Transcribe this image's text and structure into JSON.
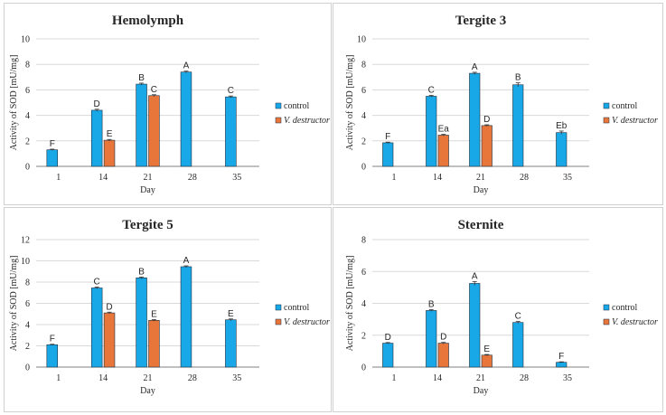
{
  "colors": {
    "control": "#18a8e8",
    "destructor": "#e8763a",
    "grid": "#d9d9d9",
    "axis": "#808080",
    "panel_border": "#d0d0d0",
    "text": "#262626",
    "bar_outline": "#1f2f3f"
  },
  "chart_data": [
    {
      "type": "bar",
      "title": "Hemolymph",
      "xlabel": "Day",
      "ylabel": "Activity of SOD [mU/mg]",
      "categories": [
        "1",
        "14",
        "21",
        "28",
        "35"
      ],
      "ylim": [
        0,
        10
      ],
      "yticks": [
        "0",
        "2",
        "4",
        "6",
        "8",
        "10"
      ],
      "grid": true,
      "legend_position": "right",
      "series": [
        {
          "name": "control",
          "values": [
            1.3,
            4.4,
            6.45,
            7.4,
            5.45
          ],
          "error": [
            0.05,
            0.08,
            0.08,
            0.07,
            0.07
          ],
          "labels": [
            "F",
            "D",
            "B",
            "A",
            "C"
          ]
        },
        {
          "name": "V. destructor",
          "values": [
            null,
            2.05,
            5.55,
            null,
            null
          ],
          "error": [
            null,
            0.06,
            0.07,
            null,
            null
          ],
          "labels": [
            "",
            "E",
            "C",
            "",
            ""
          ]
        }
      ]
    },
    {
      "type": "bar",
      "title": "Tergite 3",
      "xlabel": "Day",
      "ylabel": "Activity of SOD [mU/mg]",
      "categories": [
        "1",
        "14",
        "21",
        "28",
        "35"
      ],
      "ylim": [
        0,
        10
      ],
      "yticks": [
        "0",
        "2",
        "4",
        "6",
        "8",
        "10"
      ],
      "grid": true,
      "legend_position": "right",
      "series": [
        {
          "name": "control",
          "values": [
            1.85,
            5.5,
            7.3,
            6.4,
            2.65
          ],
          "error": [
            0.05,
            0.07,
            0.08,
            0.15,
            0.12
          ],
          "labels": [
            "F",
            "C",
            "A",
            "B",
            "Eb"
          ]
        },
        {
          "name": "V. destructor",
          "values": [
            null,
            2.45,
            3.2,
            null,
            null
          ],
          "error": [
            null,
            0.06,
            0.06,
            null,
            null
          ],
          "labels": [
            "",
            "Ea",
            "D",
            "",
            ""
          ]
        }
      ]
    },
    {
      "type": "bar",
      "title": "Tergite 5",
      "xlabel": "Day",
      "ylabel": "Activity of SOD [mU/mg]",
      "categories": [
        "1",
        "14",
        "21",
        "28",
        "35"
      ],
      "ylim": [
        0,
        12
      ],
      "yticks": [
        "0",
        "2",
        "4",
        "6",
        "8",
        "10",
        "12"
      ],
      "grid": true,
      "legend_position": "right",
      "series": [
        {
          "name": "control",
          "values": [
            2.1,
            7.45,
            8.4,
            9.45,
            4.45
          ],
          "error": [
            0.05,
            0.08,
            0.08,
            0.08,
            0.08
          ],
          "labels": [
            "F",
            "C",
            "B",
            "A",
            "E"
          ]
        },
        {
          "name": "V. destructor",
          "values": [
            null,
            5.1,
            4.4,
            null,
            null
          ],
          "error": [
            null,
            0.07,
            0.07,
            null,
            null
          ],
          "labels": [
            "",
            "D",
            "E",
            "",
            ""
          ]
        }
      ]
    },
    {
      "type": "bar",
      "title": "Sternite",
      "xlabel": "Day",
      "ylabel": "Activity of SOD [mU/mg]",
      "categories": [
        "1",
        "14",
        "21",
        "28",
        "35"
      ],
      "ylim": [
        0,
        8
      ],
      "yticks": [
        "0",
        "2",
        "4",
        "6",
        "8"
      ],
      "grid": true,
      "legend_position": "right",
      "series": [
        {
          "name": "control",
          "values": [
            1.5,
            3.55,
            5.25,
            2.8,
            0.3
          ],
          "error": [
            0.04,
            0.05,
            0.12,
            0.06,
            0.03
          ],
          "labels": [
            "D",
            "B",
            "A",
            "C",
            "F"
          ]
        },
        {
          "name": "V. destructor",
          "values": [
            null,
            1.5,
            0.75,
            null,
            null
          ],
          "error": [
            null,
            0.05,
            0.04,
            null,
            null
          ],
          "labels": [
            "",
            "D",
            "E",
            "",
            ""
          ]
        }
      ]
    }
  ]
}
